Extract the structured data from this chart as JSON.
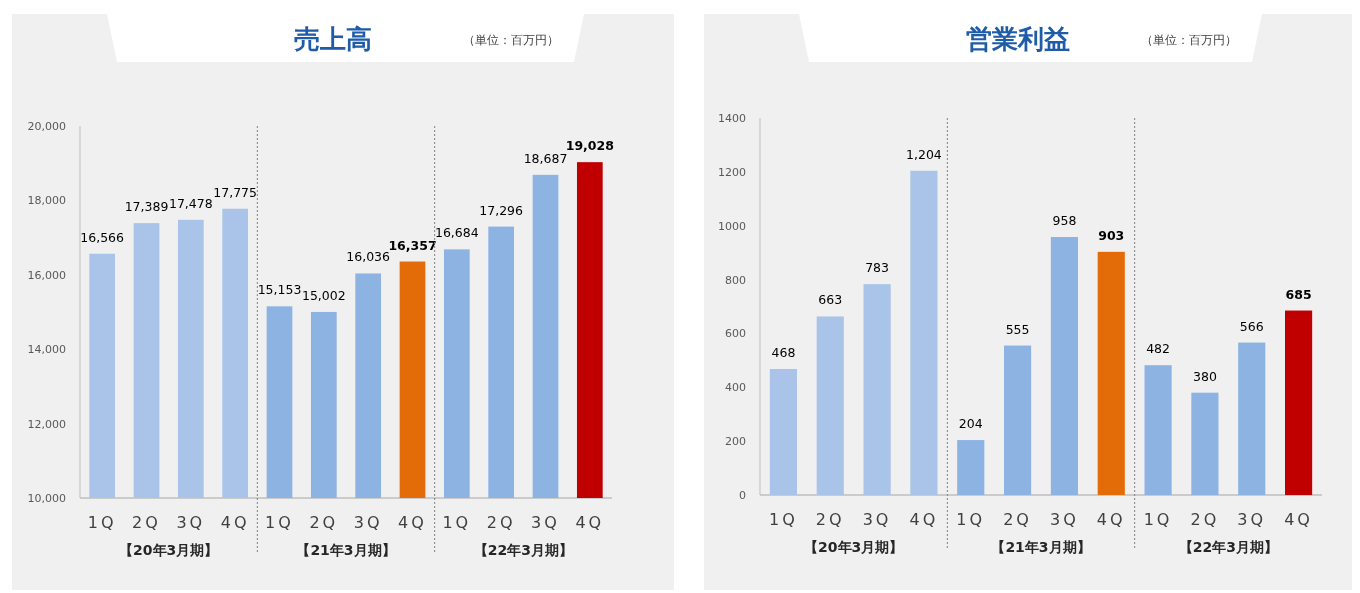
{
  "chart_data": [
    {
      "type": "bar",
      "title": "売上高",
      "subtitle": "（単位：百万円）",
      "categories": [
        "1Q",
        "2Q",
        "3Q",
        "4Q",
        "1Q",
        "2Q",
        "3Q",
        "4Q",
        "1Q",
        "2Q",
        "3Q",
        "4Q"
      ],
      "values": [
        16566,
        17389,
        17478,
        17775,
        15153,
        15002,
        16036,
        16357,
        16684,
        17296,
        18687,
        19028
      ],
      "colors": [
        "#a9c4e8",
        "#a9c4e8",
        "#a9c4e8",
        "#a9c4e8",
        "#8db3e2",
        "#8db3e2",
        "#8db3e2",
        "#e36c09",
        "#8db3e2",
        "#8db3e2",
        "#8db3e2",
        "#c00000"
      ],
      "value_labels": [
        "16,566",
        "17,389",
        "17,478",
        "17,775",
        "15,153",
        "15,002",
        "16,036",
        "16,357",
        "16,684",
        "17,296",
        "18,687",
        "19,028"
      ],
      "ylim": [
        10000,
        20000
      ],
      "yticks": [
        {
          "value": 10000,
          "label": "10,000"
        },
        {
          "value": 12000,
          "label": "12,000"
        },
        {
          "value": 14000,
          "label": "14,000"
        },
        {
          "value": 16000,
          "label": "16,000"
        },
        {
          "value": 18000,
          "label": "18,000"
        },
        {
          "value": 20000,
          "label": "20,000"
        }
      ],
      "annotations": [
        "【20年3月期】",
        "【21年3月期】",
        "【22年3月期】"
      ]
    },
    {
      "type": "bar",
      "title": "営業利益",
      "subtitle": "（単位：百万円）",
      "categories": [
        "1Q",
        "2Q",
        "3Q",
        "4Q",
        "1Q",
        "2Q",
        "3Q",
        "4Q",
        "1Q",
        "2Q",
        "3Q",
        "4Q"
      ],
      "values": [
        468,
        663,
        783,
        1204,
        204,
        555,
        958,
        903,
        482,
        380,
        566,
        685
      ],
      "colors": [
        "#a9c4e8",
        "#a9c4e8",
        "#a9c4e8",
        "#a9c4e8",
        "#8db3e2",
        "#8db3e2",
        "#8db3e2",
        "#e36c09",
        "#8db3e2",
        "#8db3e2",
        "#8db3e2",
        "#c00000"
      ],
      "value_labels": [
        "468",
        "663",
        "783",
        "1,204",
        "204",
        "555",
        "958",
        "903",
        "482",
        "380",
        "566",
        "685"
      ],
      "ylim": [
        0,
        1400
      ],
      "yticks": [
        0,
        200,
        400,
        600,
        800,
        1000,
        1200,
        1400
      ],
      "annotations": [
        "【20年3月期】",
        "【21年3月期】",
        "【22年3月期】"
      ]
    }
  ]
}
